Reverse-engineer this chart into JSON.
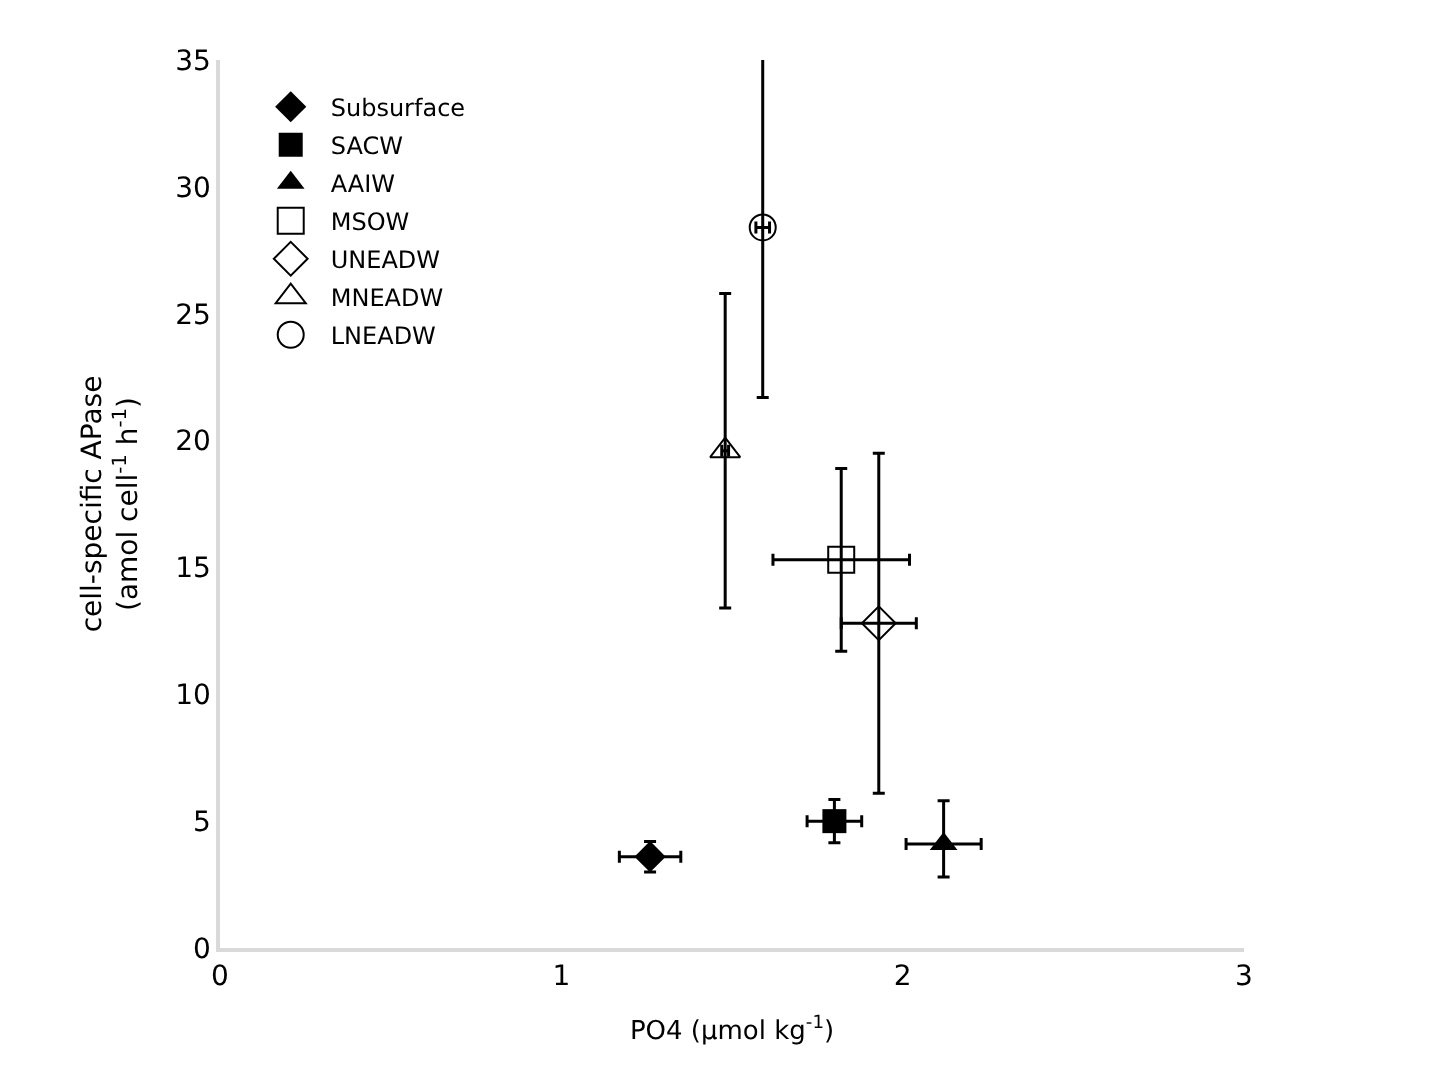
{
  "chart_data": {
    "type": "scatter",
    "xlabel": "PO4 (µmol kg$^{-1}$)",
    "ylabel": "cell-specific APase\n(amol cell$^{-1}$ h$^{-1}$)",
    "xlim": [
      0,
      3
    ],
    "xticks": [
      0,
      1,
      2,
      3
    ],
    "ylim": [
      0,
      35
    ],
    "yticks": [
      0,
      5,
      10,
      15,
      20,
      25,
      30,
      35
    ],
    "legend": "top left",
    "series": [
      {
        "name": "Subsurface",
        "color": "#000000",
        "marker": "diamond",
        "x": [
          1.26
        ],
        "values": [
          3.6
        ],
        "errors": [
          0.6
        ],
        "xerrors": [
          0.09
        ]
      },
      {
        "name": "SACW",
        "color": "#000000",
        "marker": "square",
        "x": [
          1.8
        ],
        "values": [
          5.0
        ],
        "errors": [
          0.85
        ],
        "xerrors": [
          0.08
        ]
      },
      {
        "name": "AAIW",
        "color": "#000000",
        "marker": "triangle",
        "x": [
          2.12
        ],
        "values": [
          4.1
        ],
        "errors": [
          [
            2.8,
            5.8
          ]
        ],
        "xerrors": [
          0.11
        ]
      },
      {
        "name": "MSOW",
        "color": "#000000",
        "marker": "square-open",
        "x": [
          1.82
        ],
        "values": [
          15.3
        ],
        "errors": [
          3.6
        ],
        "xerrors": [
          0.2
        ]
      },
      {
        "name": "UNEADW",
        "color": "#000000",
        "marker": "diamond-open",
        "x": [
          1.93
        ],
        "values": [
          12.8
        ],
        "errors": [
          6.7
        ],
        "xerrors": [
          0.11
        ]
      },
      {
        "name": "MNEADW",
        "color": "#000000",
        "marker": "triangle-open",
        "x": [
          1.48
        ],
        "values": [
          19.6
        ],
        "errors": [
          6.2
        ],
        "xerrors": [
          0.01
        ]
      },
      {
        "name": "LNEADW",
        "color": "#000000",
        "marker": "circle-open",
        "x": [
          1.59
        ],
        "values": [
          28.4
        ],
        "errors": [
          6.7
        ],
        "xerrors": [
          0.02
        ]
      }
    ]
  }
}
